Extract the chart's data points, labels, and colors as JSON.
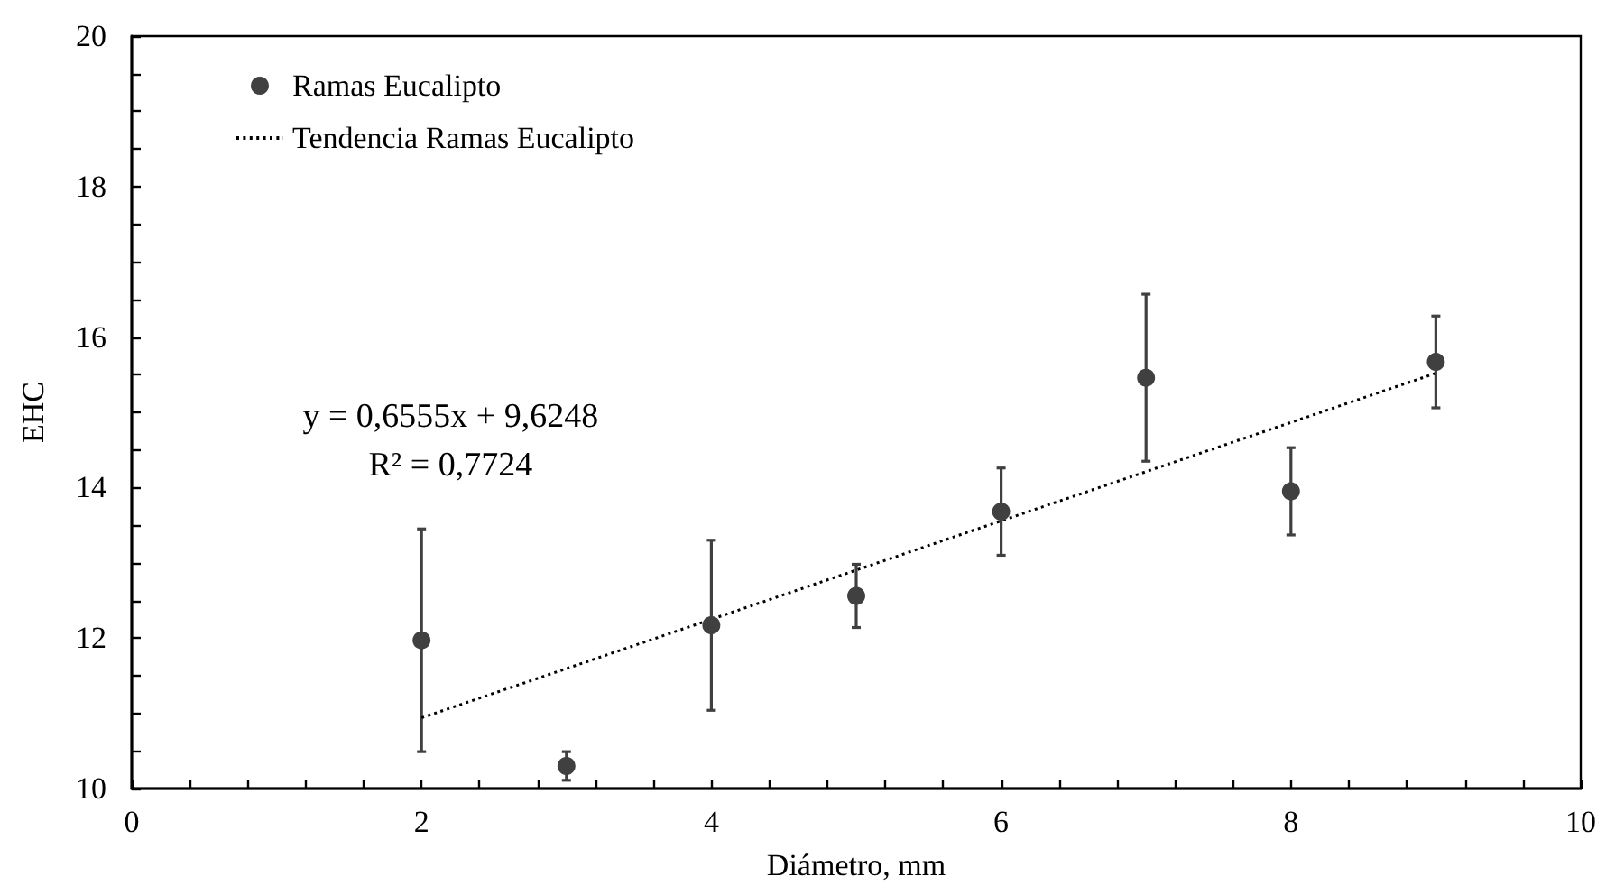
{
  "chart_data": {
    "type": "scatter",
    "xlabel": "Diámetro, mm",
    "ylabel": "EHC",
    "annotations": [
      "y = 0,6555x + 9,6248",
      "R² = 0,7724"
    ],
    "series": [
      {
        "name": "Ramas Eucalipto",
        "color": "#404040",
        "x": [
          2,
          3,
          4,
          5,
          6,
          7,
          8,
          9
        ],
        "values": [
          11.97,
          10.3,
          12.17,
          12.56,
          13.68,
          15.46,
          13.95,
          15.67
        ],
        "errors": [
          1.48,
          0.19,
          1.13,
          0.42,
          0.58,
          1.11,
          0.58,
          0.61
        ]
      },
      {
        "name": "Tendencia Ramas Eucalipto",
        "type": "line",
        "color": "#000000",
        "x": [
          2,
          9
        ],
        "values": [
          10.94,
          15.52
        ],
        "marker": "none"
      }
    ],
    "marker": "circle",
    "line_style": "dotted",
    "xlim": [
      0,
      10
    ],
    "ylim": [
      10,
      20
    ],
    "xticks": [
      0,
      {
        "value": 0.4,
        "label": null
      },
      {
        "value": 0.8,
        "label": null
      },
      {
        "value": 1.2,
        "label": null
      },
      {
        "value": 1.6,
        "label": null
      },
      2,
      {
        "value": 2.4,
        "label": null
      },
      {
        "value": 2.8,
        "label": null
      },
      {
        "value": 3.2,
        "label": null
      },
      {
        "value": 3.6,
        "label": null
      },
      4,
      {
        "value": 4.4,
        "label": null
      },
      {
        "value": 4.8,
        "label": null
      },
      {
        "value": 5.2,
        "label": null
      },
      {
        "value": 5.6,
        "label": null
      },
      6,
      {
        "value": 6.4,
        "label": null
      },
      {
        "value": 6.8,
        "label": null
      },
      {
        "value": 7.2,
        "label": null
      },
      {
        "value": 7.6,
        "label": null
      },
      8,
      {
        "value": 8.4,
        "label": null
      },
      {
        "value": 8.8,
        "label": null
      },
      {
        "value": 9.2,
        "label": null
      },
      {
        "value": 9.6,
        "label": null
      },
      10
    ],
    "yticks": [
      10,
      {
        "value": 10.5,
        "label": null
      },
      {
        "value": 11,
        "label": null
      },
      {
        "value": 11.5,
        "label": null
      },
      12,
      {
        "value": 12.5,
        "label": null
      },
      {
        "value": 13,
        "label": null
      },
      {
        "value": 13.5,
        "label": null
      },
      14,
      {
        "value": 14.5,
        "label": null
      },
      {
        "value": 15,
        "label": null
      },
      {
        "value": 15.5,
        "label": null
      },
      16,
      {
        "value": 16.5,
        "label": null
      },
      {
        "value": 17,
        "label": null
      },
      {
        "value": 17.5,
        "label": null
      },
      18,
      {
        "value": 18.5,
        "label": null
      },
      {
        "value": 19,
        "label": null
      },
      {
        "value": 19.5,
        "label": null
      },
      20
    ],
    "grid": false,
    "legend": "top left"
  }
}
